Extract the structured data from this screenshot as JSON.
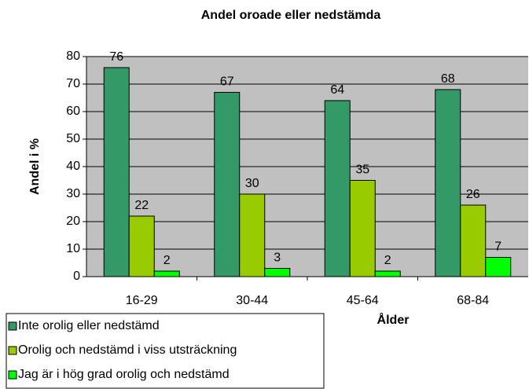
{
  "chart_data": {
    "type": "bar",
    "title": "Andel oroade eller nedstämda",
    "x_label": "Ålder",
    "y_label": "Andel i %",
    "categories": [
      "16-29",
      "30-44",
      "45-64",
      "68-84"
    ],
    "series": [
      {
        "name": "Inte orolig eller nedstämd",
        "color": "#339966",
        "values": [
          76,
          67,
          64,
          68
        ]
      },
      {
        "name": "Orolig och nedstämd i viss utsträckning",
        "color": "#99cc00",
        "values": [
          22,
          30,
          35,
          26
        ]
      },
      {
        "name": "Jag är i hög grad orolig och nedstämd",
        "color": "#00ff00",
        "values": [
          2,
          3,
          2,
          7
        ]
      }
    ],
    "ylim": [
      0,
      80
    ],
    "yticks": [
      0,
      10,
      20,
      30,
      40,
      50,
      60,
      70,
      80
    ],
    "grid": true,
    "legend": "bottom-left"
  }
}
